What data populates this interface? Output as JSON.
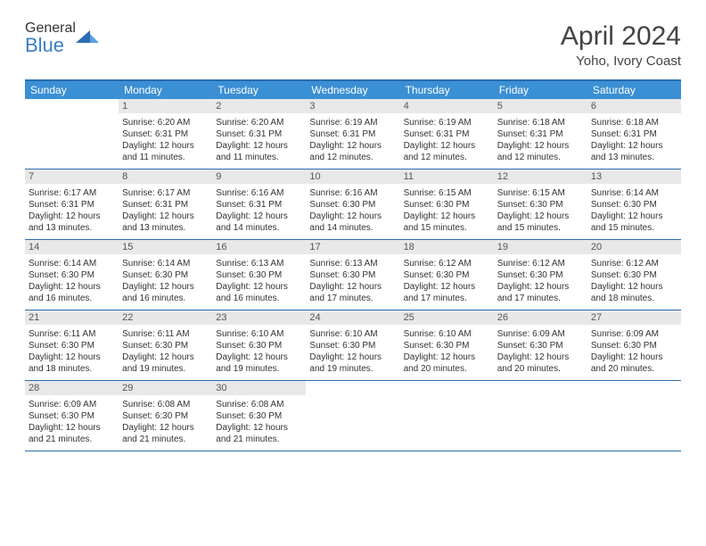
{
  "logo": {
    "textTop": "General",
    "textBottom": "Blue"
  },
  "title": "April 2024",
  "subtitle": "Yoho, Ivory Coast",
  "colors": {
    "headerBg": "#3b8fd4",
    "borderBlue": "#2b6db0",
    "dayNumBg": "#e8e8e8",
    "logoBlue": "#3b7fc4",
    "textGray": "#555555"
  },
  "dayHeaders": [
    "Sunday",
    "Monday",
    "Tuesday",
    "Wednesday",
    "Thursday",
    "Friday",
    "Saturday"
  ],
  "weeks": [
    [
      null,
      {
        "n": "1",
        "sr": "6:20 AM",
        "ss": "6:31 PM",
        "dl": "12 hours and 11 minutes."
      },
      {
        "n": "2",
        "sr": "6:20 AM",
        "ss": "6:31 PM",
        "dl": "12 hours and 11 minutes."
      },
      {
        "n": "3",
        "sr": "6:19 AM",
        "ss": "6:31 PM",
        "dl": "12 hours and 12 minutes."
      },
      {
        "n": "4",
        "sr": "6:19 AM",
        "ss": "6:31 PM",
        "dl": "12 hours and 12 minutes."
      },
      {
        "n": "5",
        "sr": "6:18 AM",
        "ss": "6:31 PM",
        "dl": "12 hours and 12 minutes."
      },
      {
        "n": "6",
        "sr": "6:18 AM",
        "ss": "6:31 PM",
        "dl": "12 hours and 13 minutes."
      }
    ],
    [
      {
        "n": "7",
        "sr": "6:17 AM",
        "ss": "6:31 PM",
        "dl": "12 hours and 13 minutes."
      },
      {
        "n": "8",
        "sr": "6:17 AM",
        "ss": "6:31 PM",
        "dl": "12 hours and 13 minutes."
      },
      {
        "n": "9",
        "sr": "6:16 AM",
        "ss": "6:31 PM",
        "dl": "12 hours and 14 minutes."
      },
      {
        "n": "10",
        "sr": "6:16 AM",
        "ss": "6:30 PM",
        "dl": "12 hours and 14 minutes."
      },
      {
        "n": "11",
        "sr": "6:15 AM",
        "ss": "6:30 PM",
        "dl": "12 hours and 15 minutes."
      },
      {
        "n": "12",
        "sr": "6:15 AM",
        "ss": "6:30 PM",
        "dl": "12 hours and 15 minutes."
      },
      {
        "n": "13",
        "sr": "6:14 AM",
        "ss": "6:30 PM",
        "dl": "12 hours and 15 minutes."
      }
    ],
    [
      {
        "n": "14",
        "sr": "6:14 AM",
        "ss": "6:30 PM",
        "dl": "12 hours and 16 minutes."
      },
      {
        "n": "15",
        "sr": "6:14 AM",
        "ss": "6:30 PM",
        "dl": "12 hours and 16 minutes."
      },
      {
        "n": "16",
        "sr": "6:13 AM",
        "ss": "6:30 PM",
        "dl": "12 hours and 16 minutes."
      },
      {
        "n": "17",
        "sr": "6:13 AM",
        "ss": "6:30 PM",
        "dl": "12 hours and 17 minutes."
      },
      {
        "n": "18",
        "sr": "6:12 AM",
        "ss": "6:30 PM",
        "dl": "12 hours and 17 minutes."
      },
      {
        "n": "19",
        "sr": "6:12 AM",
        "ss": "6:30 PM",
        "dl": "12 hours and 17 minutes."
      },
      {
        "n": "20",
        "sr": "6:12 AM",
        "ss": "6:30 PM",
        "dl": "12 hours and 18 minutes."
      }
    ],
    [
      {
        "n": "21",
        "sr": "6:11 AM",
        "ss": "6:30 PM",
        "dl": "12 hours and 18 minutes."
      },
      {
        "n": "22",
        "sr": "6:11 AM",
        "ss": "6:30 PM",
        "dl": "12 hours and 19 minutes."
      },
      {
        "n": "23",
        "sr": "6:10 AM",
        "ss": "6:30 PM",
        "dl": "12 hours and 19 minutes."
      },
      {
        "n": "24",
        "sr": "6:10 AM",
        "ss": "6:30 PM",
        "dl": "12 hours and 19 minutes."
      },
      {
        "n": "25",
        "sr": "6:10 AM",
        "ss": "6:30 PM",
        "dl": "12 hours and 20 minutes."
      },
      {
        "n": "26",
        "sr": "6:09 AM",
        "ss": "6:30 PM",
        "dl": "12 hours and 20 minutes."
      },
      {
        "n": "27",
        "sr": "6:09 AM",
        "ss": "6:30 PM",
        "dl": "12 hours and 20 minutes."
      }
    ],
    [
      {
        "n": "28",
        "sr": "6:09 AM",
        "ss": "6:30 PM",
        "dl": "12 hours and 21 minutes."
      },
      {
        "n": "29",
        "sr": "6:08 AM",
        "ss": "6:30 PM",
        "dl": "12 hours and 21 minutes."
      },
      {
        "n": "30",
        "sr": "6:08 AM",
        "ss": "6:30 PM",
        "dl": "12 hours and 21 minutes."
      },
      null,
      null,
      null,
      null
    ]
  ],
  "labels": {
    "sunrise": "Sunrise:",
    "sunset": "Sunset:",
    "daylight": "Daylight:"
  }
}
